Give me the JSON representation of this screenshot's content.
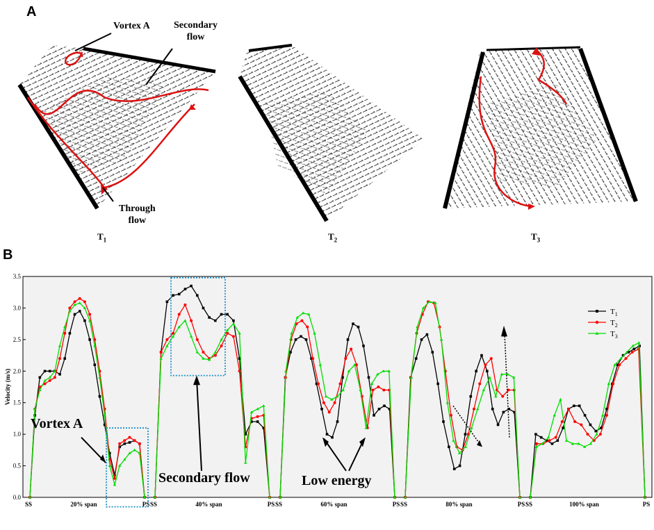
{
  "panels": {
    "a_label": "A",
    "b_label": "B"
  },
  "vector_fields": {
    "t1_label": "T",
    "t1_sub": "1",
    "t2_label": "T",
    "t2_sub": "2",
    "t3_label": "T",
    "t3_sub": "3",
    "annotations": {
      "vortex": "Vortex A",
      "secondary_line1": "Secondary",
      "secondary_line2": "flow",
      "through_line1": "Through",
      "through_line2": "flow"
    }
  },
  "colors": {
    "t1": "#000000",
    "t2": "#ff0000",
    "t3": "#00dd00",
    "box": "#1e90c8",
    "flow_line": "#dd1111"
  },
  "chart_data": {
    "type": "line",
    "ylabel": "Velocity (m/s)",
    "ylim": [
      0,
      3.5
    ],
    "yticks": [
      "0.0",
      "0.5",
      "1.0",
      "1.5",
      "2.0",
      "2.5",
      "3.0",
      "3.5"
    ],
    "groups": [
      {
        "name": "20% span",
        "left": "SS",
        "right": "PS"
      },
      {
        "name": "40% span",
        "left": "SS",
        "right": "PS"
      },
      {
        "name": "60% span",
        "left": "SS",
        "right": "PS"
      },
      {
        "name": "80% span",
        "left": "SS",
        "right": "PS"
      },
      {
        "name": "100% span",
        "left": "SS",
        "right": "PS"
      }
    ],
    "legend": [
      "T1",
      "T2",
      "T3"
    ],
    "legend_main": "T",
    "legend_subs": [
      "1",
      "2",
      "3"
    ],
    "annotations": {
      "vortex": "Vortex A",
      "secondary": "Secondary flow",
      "low_energy": "Low energy"
    },
    "series": [
      {
        "name": "T1",
        "groups": [
          [
            0,
            1.3,
            1.9,
            2.0,
            2.0,
            2.0,
            1.95,
            2.2,
            2.6,
            2.9,
            2.95,
            2.8,
            2.5,
            2.1,
            1.6,
            1.15,
            0.7,
            0.35,
            0.8,
            0.85,
            0.87,
            0.9,
            0.85,
            0
          ],
          [
            0,
            2.3,
            3.1,
            3.2,
            3.22,
            3.3,
            3.35,
            3.2,
            3.0,
            2.85,
            2.8,
            2.9,
            2.9,
            2.8,
            2.2,
            1.0,
            1.2,
            1.2,
            1.1,
            0
          ],
          [
            0,
            1.9,
            2.3,
            2.5,
            2.55,
            2.5,
            2.2,
            1.8,
            1.4,
            1.0,
            0.95,
            1.2,
            1.9,
            2.5,
            2.75,
            2.7,
            2.4,
            1.9,
            1.3,
            1.4,
            1.45,
            1.4,
            0
          ],
          [
            0,
            1.9,
            2.2,
            2.5,
            2.58,
            2.3,
            1.8,
            1.2,
            0.8,
            0.45,
            0.5,
            1.0,
            1.6,
            2.0,
            2.25,
            2.0,
            1.4,
            1.15,
            1.35,
            1.4,
            1.35,
            0
          ],
          [
            0,
            1.0,
            0.95,
            0.9,
            0.85,
            0.9,
            1.1,
            1.4,
            1.45,
            1.45,
            1.3,
            1.15,
            1.05,
            1.1,
            1.4,
            1.8,
            2.1,
            2.25,
            2.3,
            2.35,
            2.4,
            0
          ]
        ]
      },
      {
        "name": "T2",
        "groups": [
          [
            0,
            1.4,
            1.75,
            1.8,
            1.85,
            1.9,
            2.2,
            2.6,
            3.0,
            3.1,
            3.15,
            3.1,
            2.9,
            2.5,
            2.0,
            1.4,
            0.6,
            0.3,
            0.85,
            0.9,
            0.95,
            0.9,
            0.85,
            0
          ],
          [
            0,
            2.3,
            2.5,
            2.6,
            2.9,
            3.05,
            2.8,
            2.5,
            2.3,
            2.2,
            2.25,
            2.4,
            2.6,
            2.55,
            2.0,
            0.8,
            1.25,
            1.28,
            1.3,
            0
          ],
          [
            0,
            1.9,
            2.5,
            2.75,
            2.8,
            2.7,
            2.2,
            1.8,
            1.5,
            1.35,
            1.5,
            1.8,
            2.2,
            2.35,
            2.1,
            1.6,
            1.1,
            1.7,
            1.75,
            1.7,
            1.7,
            0
          ],
          [
            0,
            1.9,
            2.6,
            2.9,
            3.1,
            3.08,
            2.7,
            2.0,
            1.3,
            0.8,
            0.75,
            1.0,
            1.4,
            1.8,
            2.1,
            2.2,
            1.7,
            1.6,
            1.7,
            1.7,
            0
          ],
          [
            0,
            0.85,
            0.85,
            0.9,
            0.95,
            1.2,
            1.4,
            1.2,
            1.15,
            1.0,
            0.9,
            1.0,
            1.3,
            1.8,
            2.1,
            2.2,
            2.3,
            2.35,
            0
          ]
        ]
      },
      {
        "name": "T3",
        "groups": [
          [
            0,
            1.4,
            1.7,
            1.85,
            1.9,
            2.0,
            2.4,
            2.7,
            2.95,
            3.05,
            3.08,
            3.0,
            2.8,
            2.4,
            1.9,
            1.3,
            0.5,
            0.2,
            0.5,
            0.6,
            0.7,
            0.75,
            0.7,
            0
          ],
          [
            0,
            2.2,
            2.4,
            2.55,
            2.7,
            2.8,
            2.55,
            2.3,
            2.2,
            2.18,
            2.3,
            2.5,
            2.65,
            2.75,
            2.6,
            0.55,
            1.35,
            1.4,
            1.45,
            0
          ],
          [
            0,
            2.0,
            2.6,
            2.85,
            2.92,
            2.9,
            2.6,
            2.1,
            1.6,
            1.55,
            1.6,
            1.7,
            2.0,
            2.1,
            1.7,
            1.1,
            1.8,
            1.95,
            2.0,
            2.0,
            0
          ],
          [
            0,
            1.9,
            2.7,
            3.0,
            3.1,
            3.08,
            2.5,
            1.5,
            0.9,
            0.7,
            0.8,
            1.1,
            1.4,
            1.7,
            1.9,
            1.6,
            1.95,
            1.95,
            1.9,
            0
          ],
          [
            0,
            0.8,
            0.85,
            0.95,
            1.3,
            1.55,
            0.9,
            0.85,
            0.85,
            0.8,
            0.85,
            1.0,
            1.3,
            1.8,
            2.1,
            2.2,
            2.3,
            2.4,
            2.45,
            0
          ]
        ]
      }
    ]
  }
}
